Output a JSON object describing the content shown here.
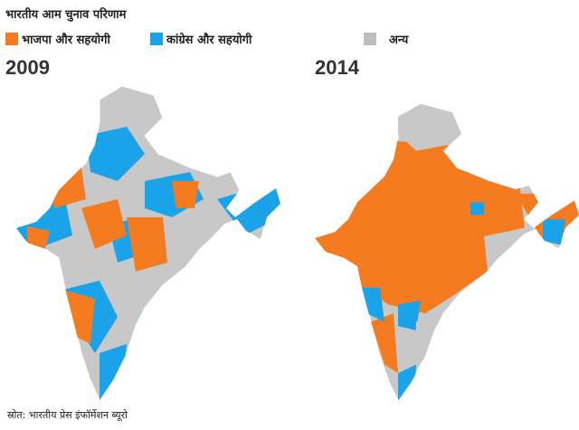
{
  "title": "भारतीय आम चुनाव परिणाम",
  "legend": [
    {
      "label": "भाजपा और सहयोगी",
      "color": "#f47b20"
    },
    {
      "label": "कांग्रेस और सहयोगी",
      "color": "#1aa3e8"
    },
    {
      "label": "अन्य",
      "color": "#bdbdbd"
    }
  ],
  "maps": [
    {
      "year": "2009"
    },
    {
      "year": "2014"
    }
  ],
  "source": "स्रोत: भारतीय प्रेस इंफॉर्मेशन ब्यूरो"
}
